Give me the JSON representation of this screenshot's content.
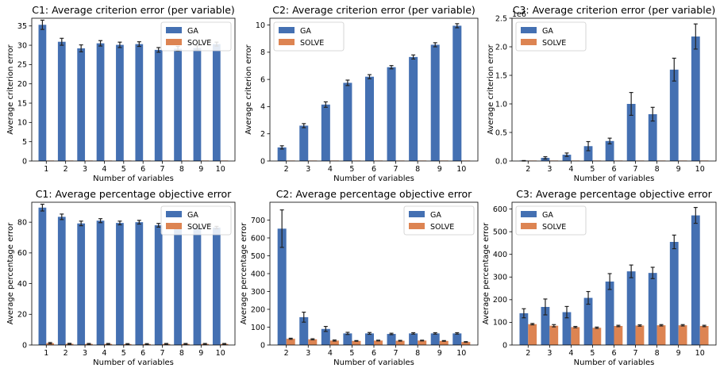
{
  "colors": {
    "ga": "#4470b2",
    "solve": "#dd8452",
    "error_bar": "#222222",
    "legend_border": "#cccccc"
  },
  "chart_data": [
    {
      "type": "bar",
      "title": "C1: Average criterion error (per variable)",
      "xlabel": "Number of variables",
      "ylabel": "Average criterion error",
      "categories": [
        "1",
        "2",
        "3",
        "4",
        "5",
        "6",
        "7",
        "8",
        "9",
        "10"
      ],
      "ylim": [
        0,
        37
      ],
      "yticks": [
        0,
        5,
        10,
        15,
        20,
        25,
        30,
        35
      ],
      "ytick_labels": [
        "0",
        "5",
        "10",
        "15",
        "20",
        "25",
        "30",
        "35"
      ],
      "legend": "top-right",
      "series": [
        {
          "name": "GA",
          "values": [
            35.3,
            30.9,
            29.2,
            30.5,
            30.1,
            30.3,
            28.8,
            29.1,
            29.3,
            30.3
          ],
          "errors": [
            1.2,
            0.9,
            0.9,
            0.7,
            0.7,
            0.6,
            0.6,
            0.6,
            0.6,
            0.5
          ]
        },
        {
          "name": "SOLVE",
          "values": [
            0.05,
            0.05,
            0.05,
            0.05,
            0.05,
            0.05,
            0.05,
            0.05,
            0.05,
            0.05
          ],
          "errors": [
            0,
            0,
            0,
            0,
            0,
            0,
            0,
            0,
            0,
            0
          ]
        }
      ]
    },
    {
      "type": "bar",
      "title": "C2: Average criterion error (per variable)",
      "xlabel": "Number of variables",
      "ylabel": "Average criterion error",
      "categories": [
        "2",
        "3",
        "4",
        "5",
        "6",
        "7",
        "8",
        "9",
        "10"
      ],
      "ylim": [
        0,
        10.5
      ],
      "yticks": [
        0,
        2,
        4,
        6,
        8,
        10
      ],
      "ytick_labels": [
        "0",
        "2",
        "4",
        "6",
        "8",
        "10"
      ],
      "legend": "top-left",
      "series": [
        {
          "name": "GA",
          "values": [
            1.0,
            2.6,
            4.15,
            5.75,
            6.2,
            6.9,
            7.65,
            8.55,
            9.95
          ],
          "errors": [
            0.12,
            0.15,
            0.2,
            0.2,
            0.15,
            0.12,
            0.15,
            0.15,
            0.15
          ]
        },
        {
          "name": "SOLVE",
          "values": [
            0.01,
            0.01,
            0.01,
            0.01,
            0.01,
            0.01,
            0.01,
            0.01,
            0.01
          ],
          "errors": [
            0,
            0,
            0,
            0,
            0,
            0,
            0,
            0,
            0
          ]
        }
      ]
    },
    {
      "type": "bar",
      "title": "C3: Average criterion error (per variable)",
      "xlabel": "Number of variables",
      "ylabel": "Average criterion error",
      "scale_label": "1e6",
      "categories": [
        "2",
        "3",
        "4",
        "5",
        "6",
        "7",
        "8",
        "9",
        "10"
      ],
      "ylim": [
        0,
        2.5
      ],
      "yticks": [
        0,
        0.5,
        1.0,
        1.5,
        2.0,
        2.5
      ],
      "ytick_labels": [
        "0.0",
        "0.5",
        "1.0",
        "1.5",
        "2.0",
        "2.5"
      ],
      "legend": "top-left",
      "series": [
        {
          "name": "GA",
          "values": [
            0.003,
            0.055,
            0.11,
            0.26,
            0.35,
            1.0,
            0.82,
            1.6,
            2.18
          ],
          "errors": [
            0.005,
            0.02,
            0.03,
            0.08,
            0.05,
            0.2,
            0.12,
            0.2,
            0.22
          ]
        },
        {
          "name": "SOLVE",
          "values": [
            0.001,
            0.001,
            0.001,
            0.001,
            0.001,
            0.001,
            0.001,
            0.001,
            0.001
          ],
          "errors": [
            0,
            0,
            0,
            0,
            0,
            0,
            0,
            0,
            0
          ]
        }
      ]
    },
    {
      "type": "bar",
      "title": "C1: Average percentage objective error",
      "xlabel": "Number of variables",
      "ylabel": "Average percentage error",
      "categories": [
        "1",
        "2",
        "3",
        "4",
        "5",
        "6",
        "7",
        "8",
        "9",
        "10"
      ],
      "ylim": [
        0,
        93
      ],
      "yticks": [
        0,
        20,
        40,
        60,
        80
      ],
      "ytick_labels": [
        "0",
        "20",
        "40",
        "60",
        "80"
      ],
      "legend": "top-right",
      "series": [
        {
          "name": "GA",
          "values": [
            89.5,
            83.5,
            79.2,
            81.0,
            79.5,
            80.0,
            78.0,
            77.0,
            76.5,
            76.5
          ],
          "errors": [
            2.2,
            1.8,
            1.5,
            1.3,
            1.2,
            1.2,
            1.2,
            1.0,
            0.9,
            0.8
          ]
        },
        {
          "name": "SOLVE",
          "values": [
            1.2,
            0.8,
            0.7,
            0.7,
            0.6,
            0.6,
            0.7,
            0.7,
            0.7,
            0.7
          ],
          "errors": [
            0.4,
            0.3,
            0.3,
            0.3,
            0.3,
            0.3,
            0.3,
            0.3,
            0.3,
            0.3
          ]
        }
      ]
    },
    {
      "type": "bar",
      "title": "C2: Average percentage objective error",
      "xlabel": "Number of variables",
      "ylabel": "Average percentage error",
      "categories": [
        "2",
        "3",
        "4",
        "5",
        "6",
        "7",
        "8",
        "9",
        "10"
      ],
      "ylim": [
        0,
        800
      ],
      "yticks": [
        0,
        100,
        200,
        300,
        400,
        500,
        600,
        700
      ],
      "ytick_labels": [
        "0",
        "100",
        "200",
        "300",
        "400",
        "500",
        "600",
        "700"
      ],
      "legend": "top-right",
      "series": [
        {
          "name": "GA",
          "values": [
            652,
            156,
            90,
            65,
            65,
            62,
            65,
            65,
            65
          ],
          "errors": [
            105,
            28,
            14,
            6,
            5,
            4,
            4,
            4,
            4
          ]
        },
        {
          "name": "SOLVE",
          "values": [
            35,
            32,
            25,
            23,
            25,
            24,
            25,
            23,
            17
          ],
          "errors": [
            3,
            3,
            3,
            2,
            2,
            2,
            2,
            2,
            2
          ]
        }
      ]
    },
    {
      "type": "bar",
      "title": "C3: Average percentage objective error",
      "xlabel": "Number of variables",
      "ylabel": "Average percentage error",
      "categories": [
        "2",
        "3",
        "4",
        "5",
        "6",
        "7",
        "8",
        "9",
        "10"
      ],
      "ylim": [
        0,
        630
      ],
      "yticks": [
        0,
        100,
        200,
        300,
        400,
        500,
        600
      ],
      "ytick_labels": [
        "0",
        "100",
        "200",
        "300",
        "400",
        "500",
        "600"
      ],
      "legend": "top-left",
      "series": [
        {
          "name": "GA",
          "values": [
            140,
            168,
            145,
            208,
            280,
            325,
            318,
            455,
            572
          ],
          "errors": [
            20,
            35,
            25,
            28,
            35,
            28,
            25,
            30,
            35
          ]
        },
        {
          "name": "SOLVE",
          "values": [
            92,
            85,
            79,
            76,
            84,
            86,
            87,
            87,
            84
          ],
          "errors": [
            3,
            5,
            3,
            3,
            3,
            3,
            3,
            3,
            3
          ]
        }
      ]
    }
  ]
}
